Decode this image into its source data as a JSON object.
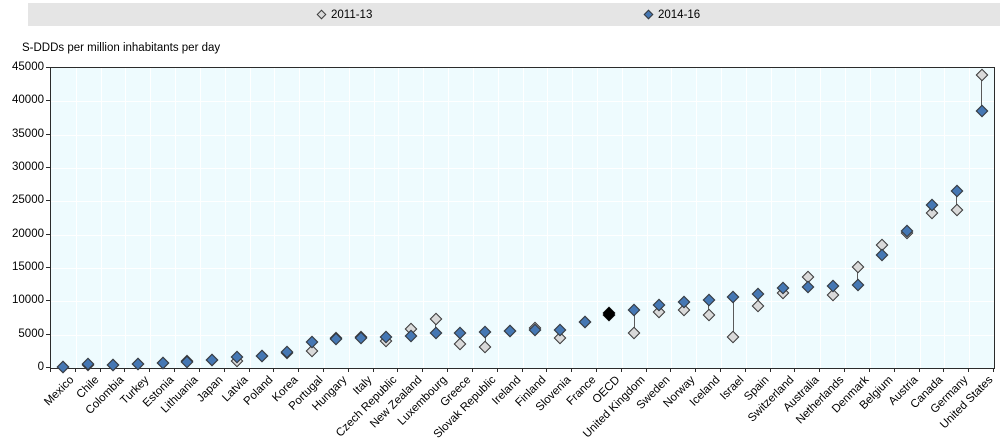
{
  "legend": {
    "items": [
      {
        "label": "2011-13",
        "style": "diamond-outline"
      },
      {
        "label": "2014-16",
        "style": "diamond-filled"
      }
    ]
  },
  "chart_data": {
    "type": "scatter",
    "title": "",
    "ylabel": "S-DDDs per million inhabitants per day",
    "xlabel": "",
    "ylim": [
      0,
      45000
    ],
    "yticks": [
      0,
      5000,
      10000,
      15000,
      20000,
      25000,
      30000,
      35000,
      40000,
      45000
    ],
    "grid": true,
    "legend_position": "top",
    "categories": [
      "Mexico",
      "Chile",
      "Colombia",
      "Turkey",
      "Estonia",
      "Lithuania",
      "Japan",
      "Latvia",
      "Poland",
      "Korea",
      "Portugal",
      "Hungary",
      "Italy",
      "Czech Republic",
      "New Zealand",
      "Luxembourg",
      "Greece",
      "Slovak Republic",
      "Ireland",
      "Finland",
      "Slovenia",
      "France",
      "OECD",
      "United Kingdom",
      "Sweden",
      "Norway",
      "Iceland",
      "Israel",
      "Spain",
      "Switzerland",
      "Australia",
      "Netherlands",
      "Denmark",
      "Belgium",
      "Austria",
      "Canada",
      "Germany",
      "United States"
    ],
    "series": [
      {
        "name": "2011-13",
        "color": "#d9d9d9",
        "values": [
          100,
          500,
          480,
          600,
          680,
          1100,
          1150,
          1100,
          1800,
          2200,
          2500,
          4500,
          4650,
          4100,
          5900,
          7300,
          3650,
          3200,
          5500,
          6000,
          4500,
          6900,
          8000,
          5200,
          8400,
          8700,
          8000,
          4650,
          9300,
          11300,
          13600,
          10900,
          15100,
          18400,
          20300,
          23300,
          23700,
          44000
        ]
      },
      {
        "name": "2014-16",
        "color": "#4577b3",
        "values": [
          130,
          550,
          520,
          640,
          700,
          950,
          1150,
          1600,
          1800,
          2400,
          3850,
          4400,
          4550,
          4650,
          4800,
          5200,
          5300,
          5400,
          5550,
          5650,
          5700,
          6950,
          8200,
          8650,
          9400,
          9900,
          10250,
          10600,
          11100,
          12000,
          12200,
          12300,
          12450,
          16900,
          20500,
          24400,
          26500,
          38500
        ]
      }
    ],
    "special_category": {
      "name": "OECD",
      "marker_color": "#000000"
    }
  },
  "colors": {
    "plot_background": "#eefbfe",
    "gridline": "#ffffff",
    "axis_frame": "#2b2b2b",
    "marker_outline": "#333333",
    "series_2011_13": "#d9d9d9",
    "series_2014_16": "#4577b3",
    "oecd_marker": "#000000",
    "legend_bar": "#e5e5e5",
    "connector_line": "#5a5a5a"
  }
}
